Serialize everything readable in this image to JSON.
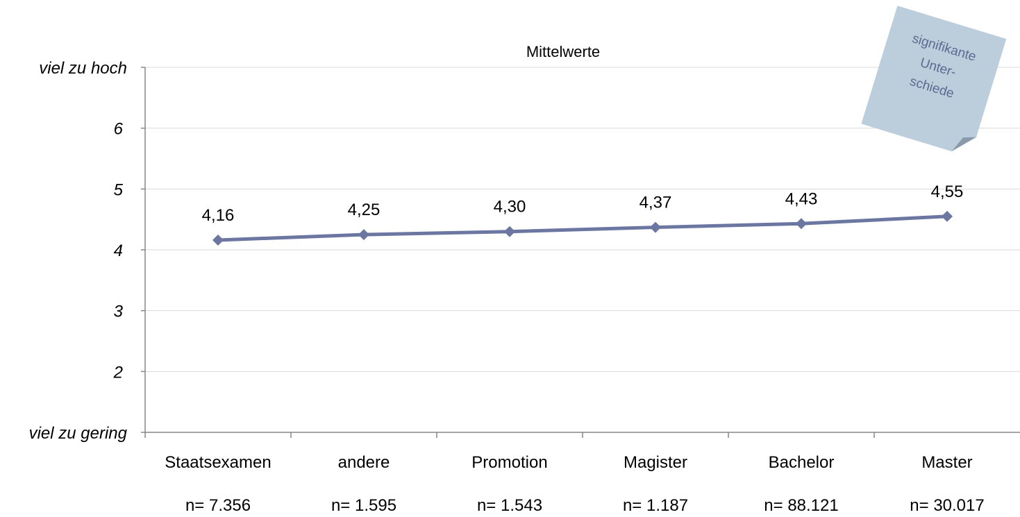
{
  "chart_data": {
    "type": "line",
    "title": "Mittelwerte",
    "categories": [
      "Staatsexamen",
      "andere",
      "Promotion",
      "Magister",
      "Bachelor",
      "Master"
    ],
    "sample_sizes": [
      "n= 7.356",
      "n= 1.595",
      "n= 1.543",
      "n= 1.187",
      "n= 88.121",
      "n= 30.017"
    ],
    "series": [
      {
        "values": [
          4.16,
          4.25,
          4.3,
          4.37,
          4.43,
          4.55
        ],
        "labels": [
          "4,16",
          "4,25",
          "4,30",
          "4,37",
          "4,43",
          "4,55"
        ],
        "color": "#6b77a1"
      }
    ],
    "ylim": [
      1,
      7
    ],
    "yticks": [
      {
        "value": 7,
        "label": "viel zu hoch"
      },
      {
        "value": 6,
        "label": "6"
      },
      {
        "value": 5,
        "label": "5"
      },
      {
        "value": 4,
        "label": "4"
      },
      {
        "value": 3,
        "label": "3"
      },
      {
        "value": 2,
        "label": "2"
      },
      {
        "value": 1,
        "label": "viel zu gering"
      }
    ],
    "grid": true,
    "gridColor": "#d9d9d9",
    "axisColor": "#868686"
  },
  "note": {
    "lines": [
      "signifikante",
      "Unter-",
      "schiede"
    ],
    "color": "#bccddc"
  }
}
